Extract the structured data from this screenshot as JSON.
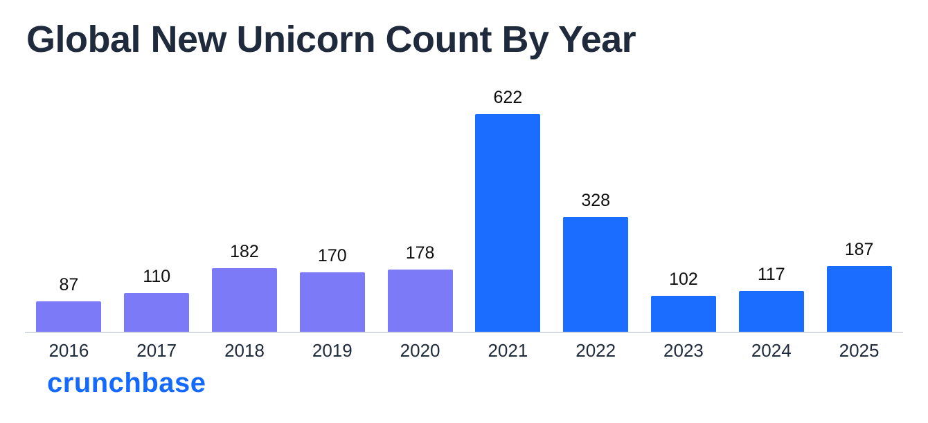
{
  "header": {
    "title": "Global New Unicorn Count By Year"
  },
  "footer": {
    "logo_text": "crunchbase"
  },
  "colors": {
    "purple": "#7d7af7",
    "blue": "#1a6dff",
    "title_text": "#1f2a3d",
    "logo_blue": "#146aff",
    "axis_line": "#d7dadf"
  },
  "chart_data": {
    "type": "bar",
    "title": "Global New Unicorn Count By Year",
    "categories": [
      "2016",
      "2017",
      "2018",
      "2019",
      "2020",
      "2021",
      "2022",
      "2023",
      "2024",
      "2025"
    ],
    "values": [
      87,
      110,
      182,
      170,
      178,
      622,
      328,
      102,
      117,
      187
    ],
    "bar_colors": [
      "purple",
      "purple",
      "purple",
      "purple",
      "purple",
      "blue",
      "blue",
      "blue",
      "blue",
      "blue"
    ],
    "data_labels": true,
    "xlabel": "",
    "ylabel": "",
    "ylim": [
      0,
      660
    ],
    "grid": false,
    "legend": "none"
  }
}
